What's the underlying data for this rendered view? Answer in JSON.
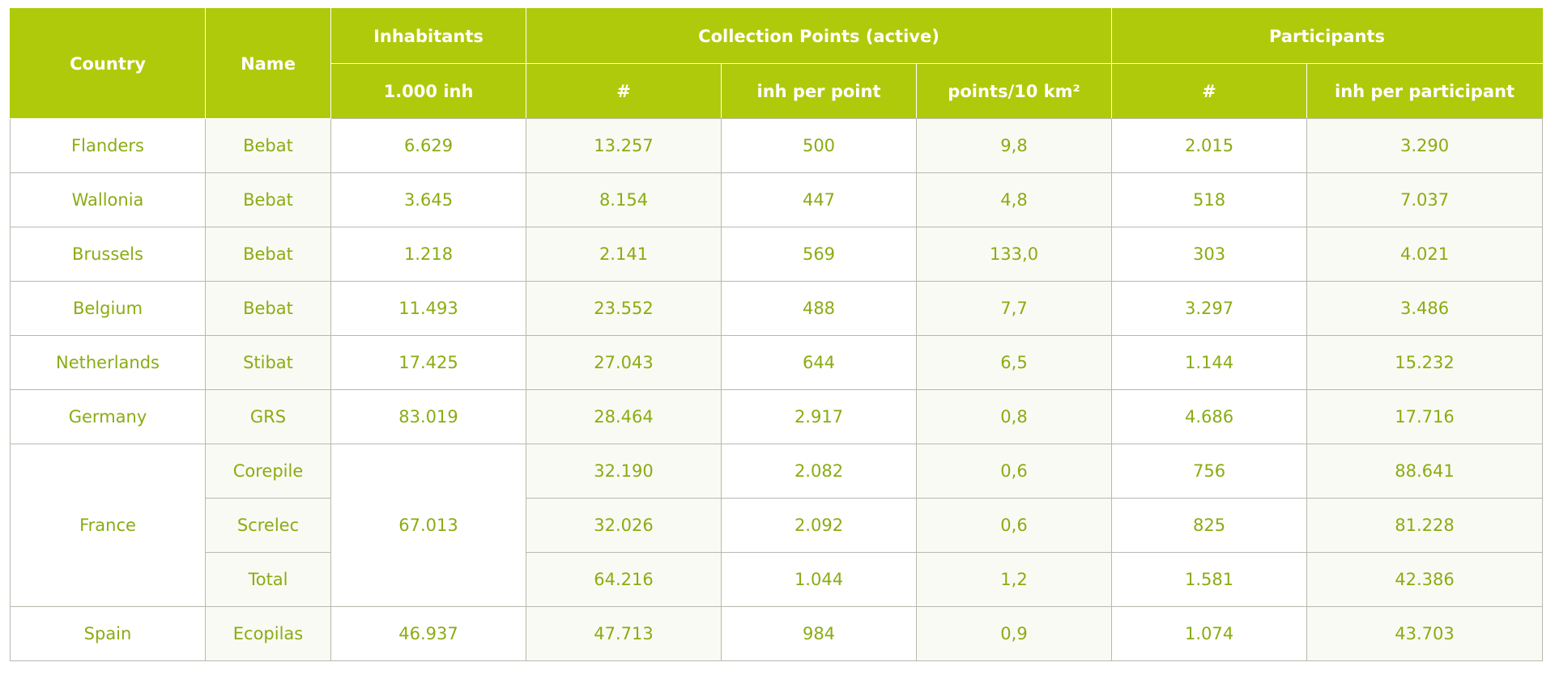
{
  "header": {
    "country": "Country",
    "name": "Name",
    "inhabitants": "Inhabitants",
    "inhabitants_unit": "1.000 inh",
    "collection_points": "Collection Points (active)",
    "cp_count": "#",
    "cp_inh_per_point": "inh per point",
    "cp_points_per_10km2": "points/10 km²",
    "participants": "Participants",
    "part_count": "#",
    "part_inh_per_participant": "inh per participant"
  },
  "rows": [
    {
      "country": "Flanders",
      "name": "Bebat",
      "inhabitants": "6.629",
      "cp_count": "13.257",
      "cp_inh_per_point": "500",
      "cp_density": "9,8",
      "part_count": "2.015",
      "part_inh": "3.290"
    },
    {
      "country": "Wallonia",
      "name": "Bebat",
      "inhabitants": "3.645",
      "cp_count": "8.154",
      "cp_inh_per_point": "447",
      "cp_density": "4,8",
      "part_count": "518",
      "part_inh": "7.037"
    },
    {
      "country": "Brussels",
      "name": "Bebat",
      "inhabitants": "1.218",
      "cp_count": "2.141",
      "cp_inh_per_point": "569",
      "cp_density": "133,0",
      "part_count": "303",
      "part_inh": "4.021"
    },
    {
      "country": "Belgium",
      "name": "Bebat",
      "inhabitants": "11.493",
      "cp_count": "23.552",
      "cp_inh_per_point": "488",
      "cp_density": "7,7",
      "part_count": "3.297",
      "part_inh": "3.486"
    },
    {
      "country": "Netherlands",
      "name": "Stibat",
      "inhabitants": "17.425",
      "cp_count": "27.043",
      "cp_inh_per_point": "644",
      "cp_density": "6,5",
      "part_count": "1.144",
      "part_inh": "15.232"
    },
    {
      "country": "Germany",
      "name": "GRS",
      "inhabitants": "83.019",
      "cp_count": "28.464",
      "cp_inh_per_point": "2.917",
      "cp_density": "0,8",
      "part_count": "4.686",
      "part_inh": "17.716"
    }
  ],
  "france": {
    "country": "France",
    "inhabitants": "67.013",
    "sub": [
      {
        "name": "Corepile",
        "cp_count": "32.190",
        "cp_inh_per_point": "2.082",
        "cp_density": "0,6",
        "part_count": "756",
        "part_inh": "88.641"
      },
      {
        "name": "Screlec",
        "cp_count": "32.026",
        "cp_inh_per_point": "2.092",
        "cp_density": "0,6",
        "part_count": "825",
        "part_inh": "81.228"
      },
      {
        "name": "Total",
        "cp_count": "64.216",
        "cp_inh_per_point": "1.044",
        "cp_density": "1,2",
        "part_count": "1.581",
        "part_inh": "42.386"
      }
    ]
  },
  "spain": {
    "country": "Spain",
    "name": "Ecopilas",
    "inhabitants": "46.937",
    "cp_count": "47.713",
    "cp_inh_per_point": "984",
    "cp_density": "0,9",
    "part_count": "1.074",
    "part_inh": "43.703"
  },
  "colors": {
    "header_bg": "#afca0b",
    "header_text": "#ffffff",
    "cell_text": "#8aac12",
    "cell_bg_alt": "#fafaf4",
    "border": "#b8b8b0"
  }
}
